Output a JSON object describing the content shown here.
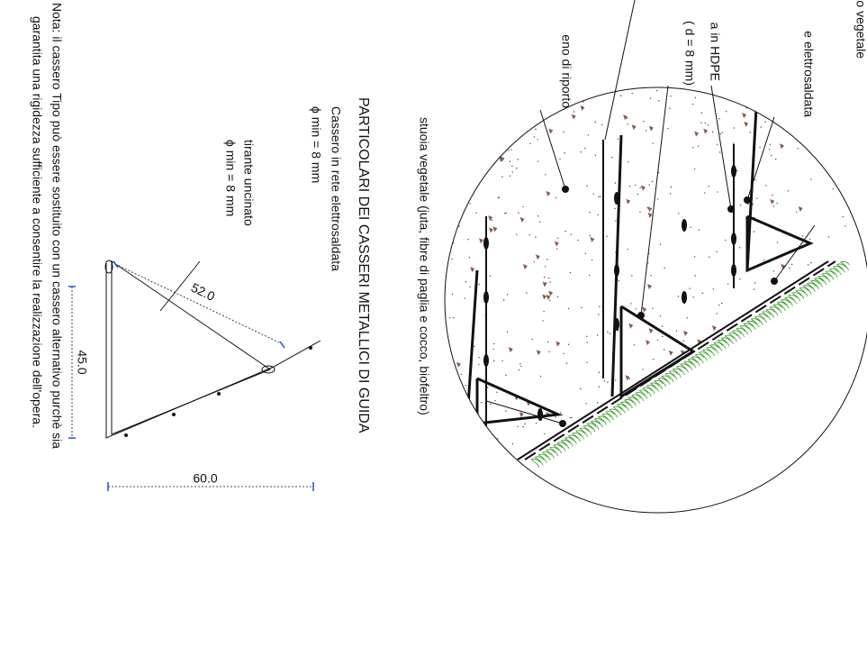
{
  "labels": {
    "vegetation": "mento vegetale",
    "mesh": "e elettrosaldata",
    "hdpe": "a in HDPE",
    "diameter": "( d = 8 mm)",
    "fill_soil": "eno di riporto",
    "mat": "stuoia vegetale (juta, fibre di paglia e cocco, biofeltro)"
  },
  "section": {
    "title": "PARTICOLARI DEI CASSERI  METALLICI DI GUIDA",
    "formwork": "Cassero in rete elettrosaldata",
    "formwork_diameter": "ϕ min = 8 mm",
    "tie": "tirante uncinato",
    "tie_diameter": "ϕ min = 8 mm"
  },
  "dimensions": {
    "side": "52.0",
    "height": "45.0",
    "base": "60.0"
  },
  "note": {
    "line1": "Nota: il cassero Tipo  può essere sostituito con un cassero alternativo purchè sia",
    "line2": "garantita una rigidezza sufficiente a consentire la realizzazione dell'opera."
  }
}
